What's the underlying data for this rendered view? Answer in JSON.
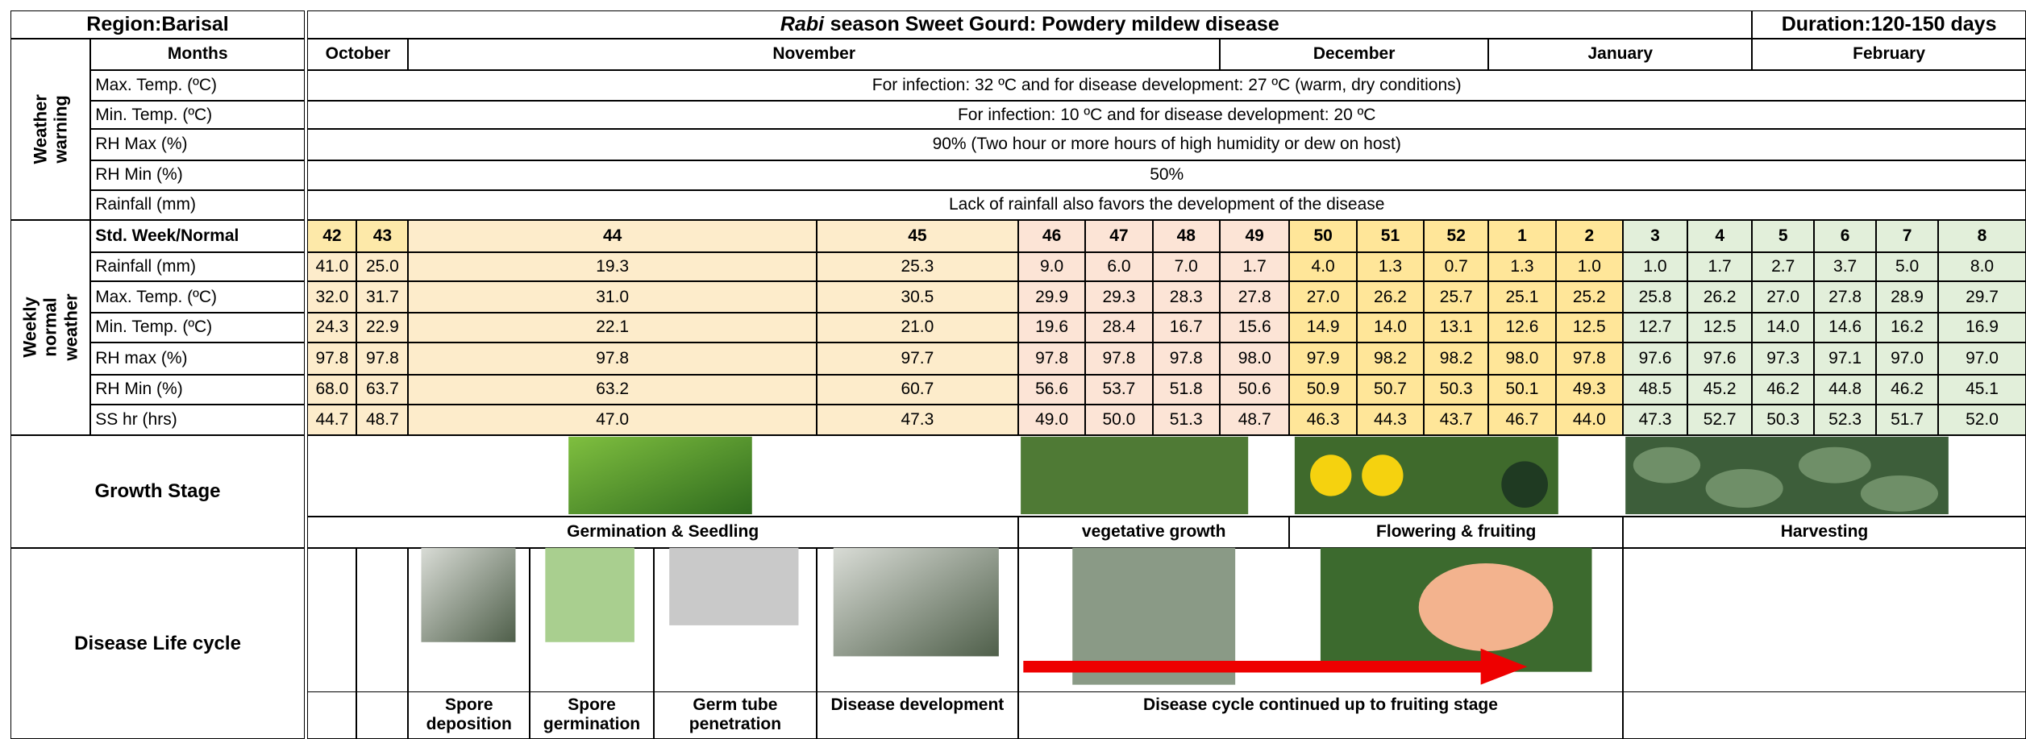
{
  "header": {
    "region": "Region:Barisal",
    "title_italic": "Rabi",
    "title_rest": "season Sweet Gourd: Powdery mildew disease",
    "duration": "Duration:120-150 days"
  },
  "months_label": "Months",
  "months": [
    "October",
    "November",
    "December",
    "January",
    "February"
  ],
  "weather_warning": {
    "label": "Weather warning",
    "rows": [
      {
        "param": "Max. Temp. (ºC)",
        "text": "For infection: 32 ºC and for disease development: 27 ºC (warm, dry conditions)"
      },
      {
        "param": "Min. Temp. (ºC)",
        "text": "For infection: 10 ºC and for disease development: 20 ºC"
      },
      {
        "param": "RH Max (%)",
        "text": "90% (Two hour or more hours of high humidity or dew on host)"
      },
      {
        "param": "RH Min (%)",
        "text": "50%"
      },
      {
        "param": "Rainfall (mm)",
        "text": "Lack of rainfall also favors the development of the disease"
      }
    ]
  },
  "weekly": {
    "label": "Weekly normal weather",
    "header_label": "Std. Week/Normal",
    "weeks": [
      "42",
      "43",
      "44",
      "45",
      "46",
      "47",
      "48",
      "49",
      "50",
      "51",
      "52",
      "1",
      "2",
      "3",
      "4",
      "5",
      "6",
      "7",
      "8"
    ],
    "rows": [
      {
        "param": "Rainfall (mm)",
        "values": [
          "41.0",
          "25.0",
          "19.3",
          "25.3",
          "9.0",
          "6.0",
          "7.0",
          "1.7",
          "4.0",
          "1.3",
          "0.7",
          "1.3",
          "1.0",
          "1.0",
          "1.7",
          "2.7",
          "3.7",
          "5.0",
          "8.0"
        ]
      },
      {
        "param": "Max. Temp. (ºC)",
        "values": [
          "32.0",
          "31.7",
          "31.0",
          "30.5",
          "29.9",
          "29.3",
          "28.3",
          "27.8",
          "27.0",
          "26.2",
          "25.7",
          "25.1",
          "25.2",
          "25.8",
          "26.2",
          "27.0",
          "27.8",
          "28.9",
          "29.7"
        ]
      },
      {
        "param": "Min. Temp. (ºC)",
        "values": [
          "24.3",
          "22.9",
          "22.1",
          "21.0",
          "19.6",
          "28.4",
          "16.7",
          "15.6",
          "14.9",
          "14.0",
          "13.1",
          "12.6",
          "12.5",
          "12.7",
          "12.5",
          "14.0",
          "14.6",
          "16.2",
          "16.9"
        ]
      },
      {
        "param": "RH max (%)",
        "values": [
          "97.8",
          "97.8",
          "97.8",
          "97.7",
          "97.8",
          "97.8",
          "97.8",
          "98.0",
          "97.9",
          "98.2",
          "98.2",
          "98.0",
          "97.8",
          "97.6",
          "97.6",
          "97.3",
          "97.1",
          "97.0",
          "97.0"
        ]
      },
      {
        "param": "RH Min (%)",
        "values": [
          "68.0",
          "63.7",
          "63.2",
          "60.7",
          "56.6",
          "53.7",
          "51.8",
          "50.6",
          "50.9",
          "50.7",
          "50.3",
          "50.1",
          "49.3",
          "48.5",
          "45.2",
          "46.2",
          "44.8",
          "46.2",
          "45.1"
        ]
      },
      {
        "param": "SS hr (hrs)",
        "values": [
          "44.7",
          "48.7",
          "47.0",
          "47.3",
          "49.0",
          "50.0",
          "51.3",
          "48.7",
          "46.3",
          "44.3",
          "43.7",
          "46.7",
          "44.0",
          "47.3",
          "52.7",
          "50.3",
          "52.3",
          "51.7",
          "52.0"
        ]
      }
    ]
  },
  "growth": {
    "label": "Growth Stage",
    "stages": [
      "Germination & Seedling",
      "vegetative growth",
      "Flowering & fruiting",
      "Harvesting"
    ]
  },
  "disease": {
    "label": "Disease Life cycle",
    "stages": [
      "Spore deposition",
      "Spore germination",
      "Germ tube penetration",
      "Disease development",
      "Disease cycle continued up to fruiting stage"
    ]
  }
}
